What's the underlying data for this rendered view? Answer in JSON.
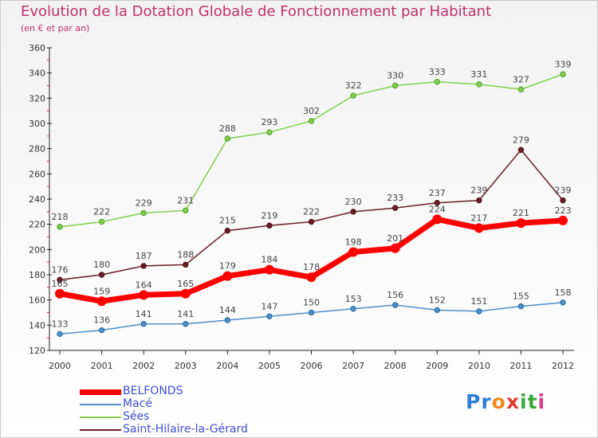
{
  "header": {
    "title": "Evolution de la Dotation Globale de Fonctionnement par Habitant",
    "subtitle": "(en € et par an)"
  },
  "logo": {
    "text": "Proxiti"
  },
  "chart_data": {
    "type": "line",
    "title": "Evolution de la Dotation Globale de Fonctionnement par Habitant",
    "subtitle": "(en € et par an)",
    "xlabel": "",
    "ylabel": "",
    "x": [
      "2000",
      "2001",
      "2002",
      "2003",
      "2004",
      "2005",
      "2006",
      "2007",
      "2008",
      "2009",
      "2010",
      "2011",
      "2012"
    ],
    "ylim": [
      120,
      360
    ],
    "yticks": [
      120,
      140,
      160,
      180,
      200,
      220,
      240,
      260,
      280,
      300,
      320,
      340,
      360
    ],
    "grid": false,
    "legend_position": "bottom-left",
    "series": [
      {
        "name": "Sées",
        "color": "#7fd04a",
        "values": [
          218,
          222,
          229,
          231,
          288,
          293,
          302,
          322,
          330,
          333,
          331,
          327,
          339
        ]
      },
      {
        "name": "Saint-Hilaire-la-Gérard",
        "color": "#6b1c24",
        "values": [
          176,
          180,
          187,
          188,
          215,
          219,
          222,
          230,
          233,
          237,
          239,
          279,
          239
        ]
      },
      {
        "name": "Macé",
        "color": "#4a90c8",
        "values": [
          133,
          136,
          141,
          141,
          144,
          147,
          150,
          153,
          156,
          152,
          151,
          155,
          158
        ]
      },
      {
        "name": "BELFONDS",
        "color": "#ff0000",
        "values": [
          165,
          159,
          164,
          165,
          179,
          184,
          178,
          198,
          201,
          224,
          217,
          221,
          223
        ]
      }
    ],
    "legend": [
      "BELFONDS",
      "Macé",
      "Sées",
      "Saint-Hilaire-la-Gérard"
    ]
  }
}
